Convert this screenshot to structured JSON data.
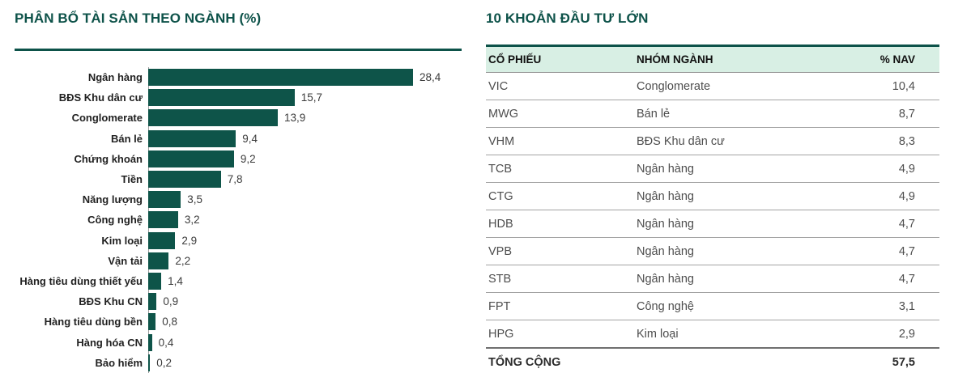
{
  "colors": {
    "accent_teal": "#0d5249",
    "bar_fill": "#0e5449",
    "table_header_bg": "#d8efe4"
  },
  "left_chart": {
    "title": "PHÂN BỔ TÀI SẢN THEO NGÀNH (%)",
    "items": [
      {
        "label": "Ngân hàng",
        "value": 28.4,
        "display": "28,4"
      },
      {
        "label": "BĐS Khu dân cư",
        "value": 15.7,
        "display": "15,7"
      },
      {
        "label": "Conglomerate",
        "value": 13.9,
        "display": "13,9"
      },
      {
        "label": "Bán lẻ",
        "value": 9.4,
        "display": "9,4"
      },
      {
        "label": "Chứng khoán",
        "value": 9.2,
        "display": "9,2"
      },
      {
        "label": "Tiền",
        "value": 7.8,
        "display": "7,8"
      },
      {
        "label": "Năng lượng",
        "value": 3.5,
        "display": "3,5"
      },
      {
        "label": "Công nghệ",
        "value": 3.2,
        "display": "3,2"
      },
      {
        "label": "Kim loại",
        "value": 2.9,
        "display": "2,9"
      },
      {
        "label": "Vận tải",
        "value": 2.2,
        "display": "2,2"
      },
      {
        "label": "Hàng tiêu dùng thiết yếu",
        "value": 1.4,
        "display": "1,4"
      },
      {
        "label": "BĐS Khu CN",
        "value": 0.9,
        "display": "0,9"
      },
      {
        "label": "Hàng tiêu dùng bền",
        "value": 0.8,
        "display": "0,8"
      },
      {
        "label": "Hàng hóa CN",
        "value": 0.4,
        "display": "0,4"
      },
      {
        "label": "Bảo hiểm",
        "value": 0.2,
        "display": "0,2"
      }
    ]
  },
  "holdings_table": {
    "title": "10 KHOẢN ĐẦU TƯ LỚN",
    "columns": [
      "CỔ PHIẾU",
      "NHÓM NGÀNH",
      "% NAV"
    ],
    "rows": [
      [
        "VIC",
        "Conglomerate",
        "10,4"
      ],
      [
        "MWG",
        "Bán lẻ",
        "8,7"
      ],
      [
        "VHM",
        "BĐS Khu dân cư",
        "8,3"
      ],
      [
        "TCB",
        "Ngân hàng",
        "4,9"
      ],
      [
        "CTG",
        "Ngân hàng",
        "4,9"
      ],
      [
        "HDB",
        "Ngân hàng",
        "4,7"
      ],
      [
        "VPB",
        "Ngân hàng",
        "4,7"
      ],
      [
        "STB",
        "Ngân hàng",
        "4,7"
      ],
      [
        "FPT",
        "Công nghệ",
        "3,1"
      ],
      [
        "HPG",
        "Kim loại",
        "2,9"
      ]
    ],
    "total": {
      "label": "TỔNG CỘNG",
      "value": "57,5"
    }
  },
  "chart_data": [
    {
      "type": "bar",
      "orientation": "horizontal",
      "title": "PHÂN BỔ TÀI SẢN THEO NGÀNH (%)",
      "categories": [
        "Ngân hàng",
        "BĐS Khu dân cư",
        "Conglomerate",
        "Bán lẻ",
        "Chứng khoán",
        "Tiền",
        "Năng lượng",
        "Công nghệ",
        "Kim loại",
        "Vận tải",
        "Hàng tiêu dùng thiết yếu",
        "BĐS Khu CN",
        "Hàng tiêu dùng bền",
        "Hàng hóa CN",
        "Bảo hiểm"
      ],
      "values": [
        28.4,
        15.7,
        13.9,
        9.4,
        9.2,
        7.8,
        3.5,
        3.2,
        2.9,
        2.2,
        1.4,
        0.9,
        0.8,
        0.4,
        0.2
      ],
      "value_labels": [
        "28,4",
        "15,7",
        "13,9",
        "9,4",
        "9,2",
        "7,8",
        "3,5",
        "3,2",
        "2,9",
        "2,2",
        "1,4",
        "0,9",
        "0,8",
        "0,4",
        "0,2"
      ],
      "xlabel": "",
      "ylabel": "",
      "xlim": [
        0,
        30
      ],
      "grid": false,
      "legend": false,
      "bar_color": "#0e5449"
    },
    {
      "type": "table",
      "title": "10 KHOẢN ĐẦU TƯ LỚN",
      "columns": [
        "CỔ PHIẾU",
        "NHÓM NGÀNH",
        "% NAV"
      ],
      "rows": [
        [
          "VIC",
          "Conglomerate",
          "10,4"
        ],
        [
          "MWG",
          "Bán lẻ",
          "8,7"
        ],
        [
          "VHM",
          "BĐS Khu dân cư",
          "8,3"
        ],
        [
          "TCB",
          "Ngân hàng",
          "4,9"
        ],
        [
          "CTG",
          "Ngân hàng",
          "4,9"
        ],
        [
          "HDB",
          "Ngân hàng",
          "4,7"
        ],
        [
          "VPB",
          "Ngân hàng",
          "4,7"
        ],
        [
          "STB",
          "Ngân hàng",
          "4,7"
        ],
        [
          "FPT",
          "Công nghệ",
          "3,1"
        ],
        [
          "HPG",
          "Kim loại",
          "2,9"
        ],
        [
          "TỔNG CỘNG",
          "",
          "57,5"
        ]
      ]
    }
  ]
}
